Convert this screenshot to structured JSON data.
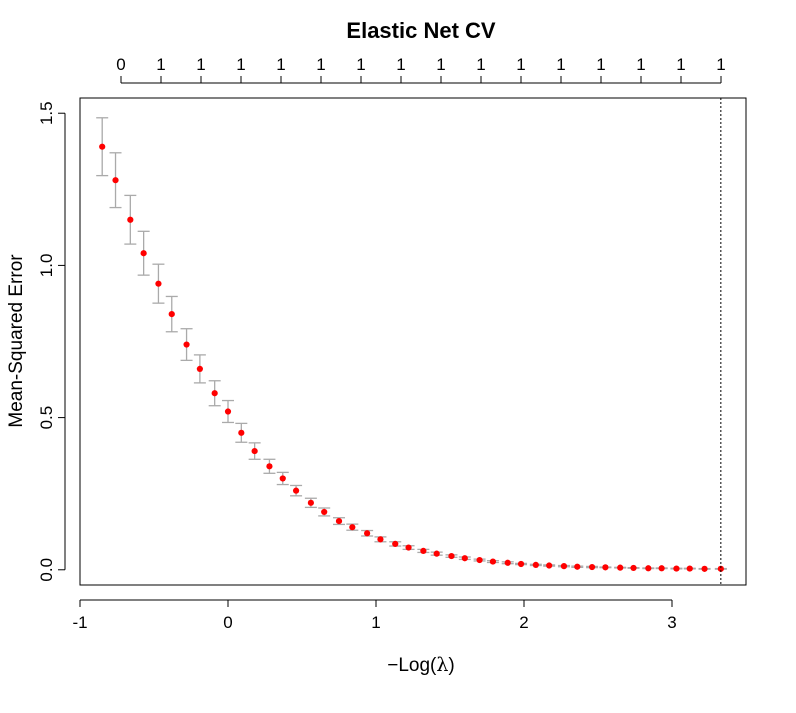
{
  "chart_data": {
    "type": "scatter",
    "title": "Elastic Net CV",
    "xlabel_minus": "−",
    "xlabel_text": "Log(",
    "xlabel_lambda": "λ",
    "xlabel_close": ")",
    "ylabel": "Mean-Squared Error",
    "xlim": [
      -1.0,
      3.5
    ],
    "ylim": [
      -0.05,
      1.55
    ],
    "x_ticks": [
      -1,
      0,
      1,
      2,
      3
    ],
    "x_tick_labels": [
      "-1",
      "0",
      "1",
      "2",
      "3"
    ],
    "y_ticks": [
      0.0,
      0.5,
      1.0,
      1.5
    ],
    "y_tick_labels": [
      "0.0",
      "0.5",
      "1.0",
      "1.5"
    ],
    "top_axis_values": [
      "0",
      "1",
      "1",
      "1",
      "1",
      "1",
      "1",
      "1",
      "1",
      "1",
      "1",
      "1",
      "1",
      "1",
      "1",
      "1"
    ],
    "vline_x": 3.33,
    "grid": false,
    "point_color": "#ff0000",
    "errorbar_color": "#aaaaaa",
    "x": [
      -0.85,
      -0.76,
      -0.66,
      -0.57,
      -0.47,
      -0.38,
      -0.28,
      -0.19,
      -0.09,
      0.0,
      0.09,
      0.18,
      0.28,
      0.37,
      0.46,
      0.56,
      0.65,
      0.75,
      0.84,
      0.94,
      1.03,
      1.13,
      1.22,
      1.32,
      1.41,
      1.51,
      1.6,
      1.7,
      1.79,
      1.89,
      1.98,
      2.08,
      2.17,
      2.27,
      2.36,
      2.46,
      2.55,
      2.65,
      2.74,
      2.84,
      2.93,
      3.03,
      3.12,
      3.22,
      3.33
    ],
    "y": [
      1.39,
      1.28,
      1.15,
      1.04,
      0.94,
      0.84,
      0.74,
      0.66,
      0.58,
      0.52,
      0.45,
      0.39,
      0.34,
      0.3,
      0.26,
      0.22,
      0.19,
      0.16,
      0.14,
      0.12,
      0.1,
      0.085,
      0.073,
      0.062,
      0.053,
      0.045,
      0.038,
      0.032,
      0.027,
      0.023,
      0.019,
      0.016,
      0.014,
      0.012,
      0.01,
      0.009,
      0.008,
      0.007,
      0.006,
      0.005,
      0.005,
      0.004,
      0.004,
      0.003,
      0.003
    ],
    "err": [
      0.095,
      0.09,
      0.08,
      0.072,
      0.064,
      0.058,
      0.052,
      0.046,
      0.041,
      0.036,
      0.031,
      0.027,
      0.023,
      0.02,
      0.017,
      0.015,
      0.013,
      0.011,
      0.01,
      0.009,
      0.008,
      0.007,
      0.006,
      0.005,
      0.005,
      0.004,
      0.004,
      0.003,
      0.003,
      0.003,
      0.002,
      0.002,
      0.002,
      0.002,
      0.002,
      0.002,
      0.001,
      0.001,
      0.001,
      0.001,
      0.001,
      0.001,
      0.001,
      0.001,
      0.001
    ]
  }
}
